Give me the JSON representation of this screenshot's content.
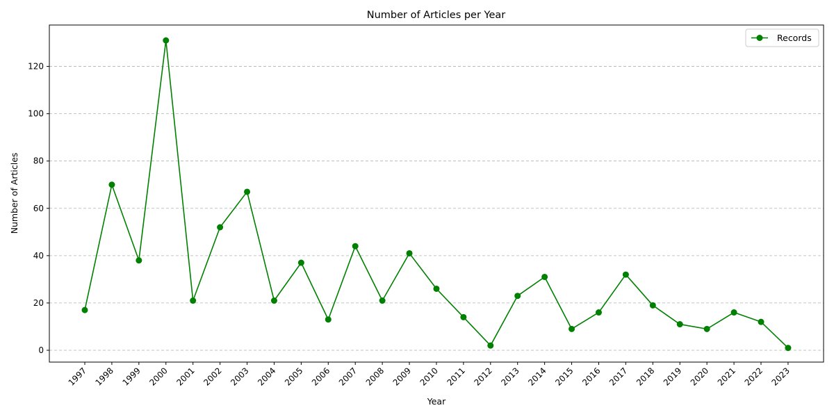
{
  "chart_data": {
    "type": "line",
    "title": "Number of Articles per Year",
    "xlabel": "Year",
    "ylabel": "Number of Articles",
    "categories": [
      "1997",
      "1998",
      "1999",
      "2000",
      "2001",
      "2002",
      "2003",
      "2004",
      "2005",
      "2006",
      "2007",
      "2008",
      "2009",
      "2010",
      "2011",
      "2012",
      "2013",
      "2014",
      "2015",
      "2016",
      "2017",
      "2018",
      "2019",
      "2020",
      "2021",
      "2022",
      "2023"
    ],
    "series": [
      {
        "name": "Records",
        "color": "#008000",
        "marker": "circle",
        "values": [
          17,
          70,
          38,
          131,
          21,
          52,
          67,
          21,
          37,
          13,
          44,
          21,
          41,
          26,
          14,
          2,
          23,
          31,
          9,
          16,
          32,
          19,
          11,
          9,
          16,
          12,
          1
        ]
      }
    ],
    "yticks": [
      0,
      20,
      40,
      60,
      80,
      100,
      120
    ],
    "ylim": [
      -5,
      137.5
    ],
    "grid": "y-dashed",
    "legend_position": "top-right"
  }
}
